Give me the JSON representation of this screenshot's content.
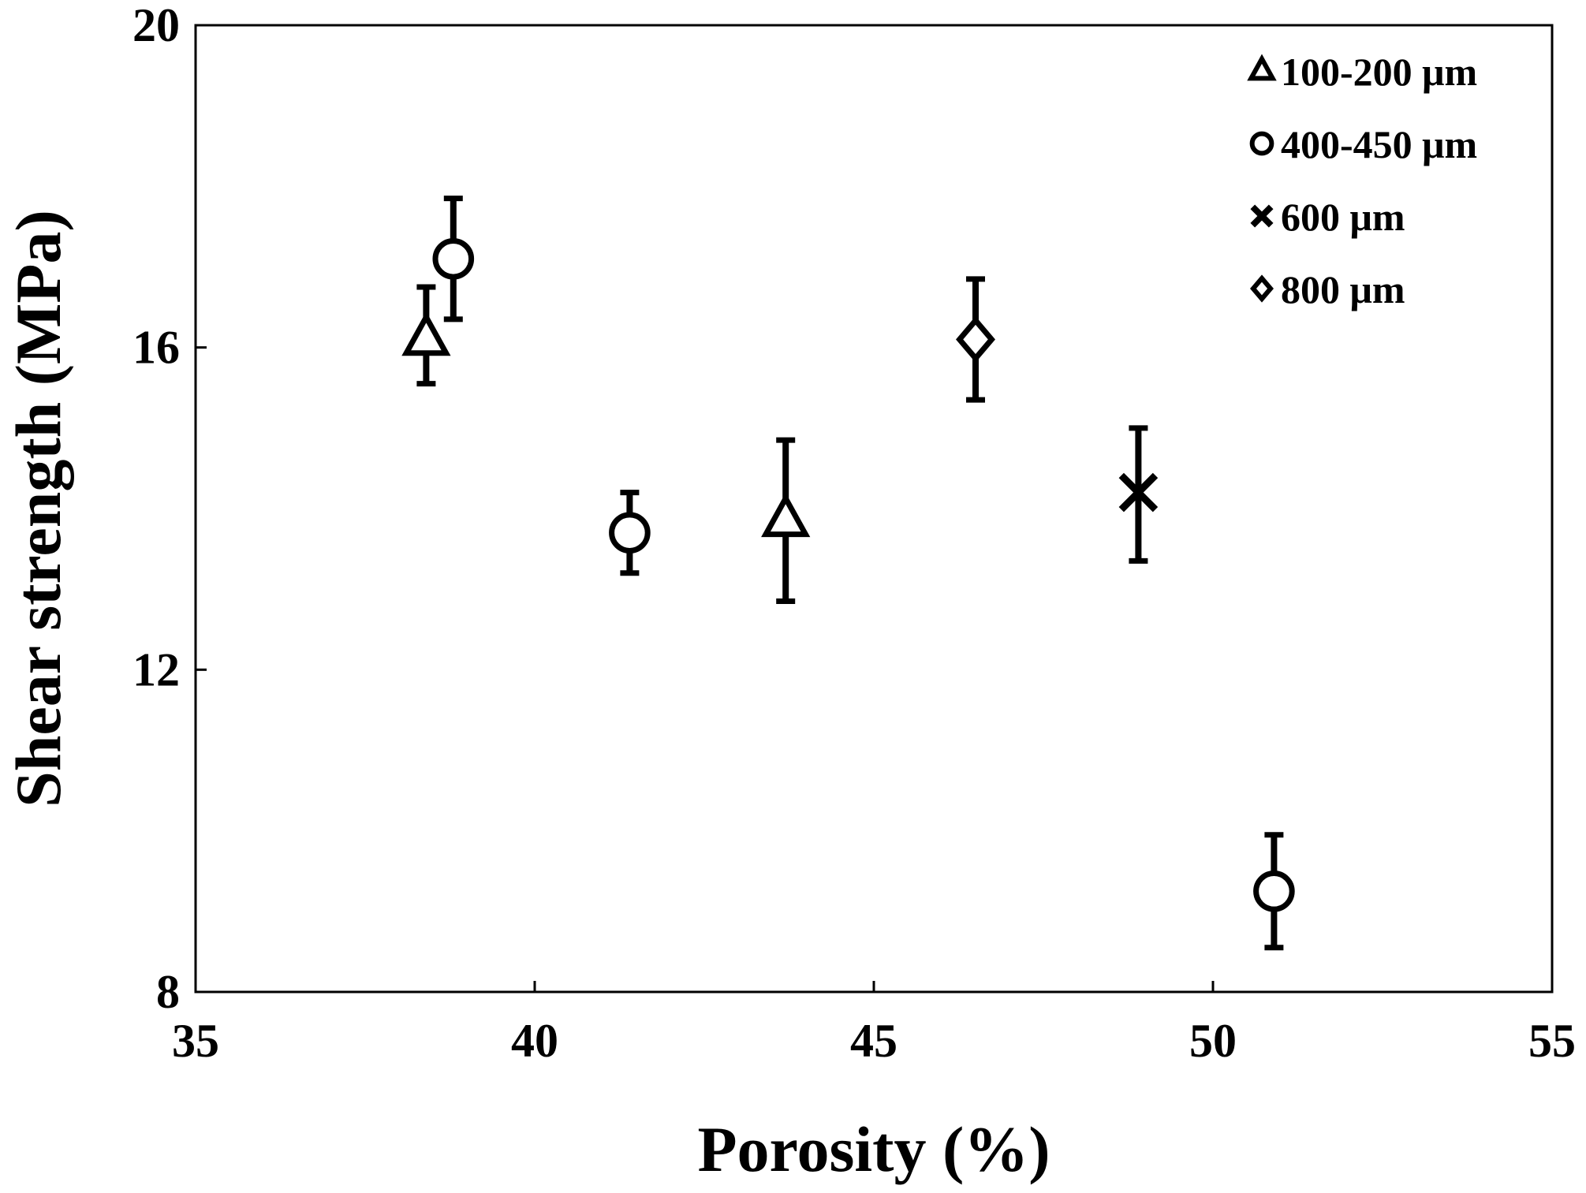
{
  "chart_data": {
    "type": "scatter",
    "xlabel": "Porosity (%)",
    "ylabel": "Shear strength (MPa)",
    "xlim": [
      35,
      55
    ],
    "ylim": [
      8,
      20
    ],
    "xticks": [
      35,
      40,
      45,
      50,
      55
    ],
    "yticks": [
      8,
      12,
      16,
      20
    ],
    "grid": false,
    "legend_position": "top-right",
    "series": [
      {
        "name": "100-200 μm",
        "marker": "triangle",
        "points": [
          {
            "x": 38.4,
            "y": 16.1,
            "err_low": 0.55,
            "err_high": 0.65
          },
          {
            "x": 43.7,
            "y": 13.85,
            "err_low": 1.0,
            "err_high": 1.0
          }
        ]
      },
      {
        "name": "400-450 μm",
        "marker": "circle",
        "points": [
          {
            "x": 38.8,
            "y": 17.1,
            "err_low": 0.75,
            "err_high": 0.75
          },
          {
            "x": 41.4,
            "y": 13.7,
            "err_low": 0.5,
            "err_high": 0.5
          },
          {
            "x": 50.9,
            "y": 9.25,
            "err_low": 0.7,
            "err_high": 0.7
          }
        ]
      },
      {
        "name": "600 μm",
        "marker": "x",
        "points": [
          {
            "x": 48.9,
            "y": 14.2,
            "err_low": 0.85,
            "err_high": 0.8
          }
        ]
      },
      {
        "name": "800 μm",
        "marker": "diamond",
        "points": [
          {
            "x": 46.5,
            "y": 16.1,
            "err_low": 0.75,
            "err_high": 0.75
          }
        ]
      }
    ]
  }
}
